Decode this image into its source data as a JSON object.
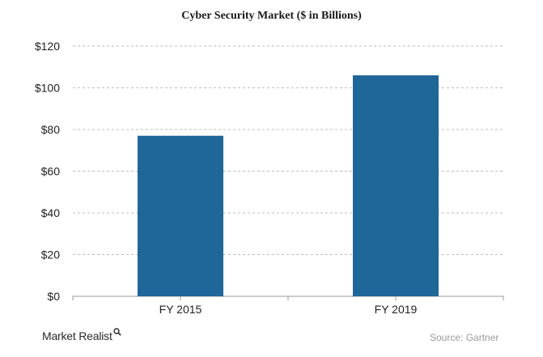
{
  "chart_data": {
    "type": "bar",
    "title": "Cyber Security Market ($ in Billions)",
    "categories": [
      "FY 2015",
      "FY 2019"
    ],
    "values": [
      77,
      106
    ],
    "ylim": [
      0,
      120
    ],
    "yticks": [
      0,
      20,
      40,
      60,
      80,
      100,
      120
    ],
    "ytick_labels": [
      "$0",
      "$20",
      "$40",
      "$60",
      "$80",
      "$100",
      "$120"
    ],
    "xlabel": "",
    "ylabel": "",
    "grid": "horizontal-dashed",
    "bar_color": "#1f6699",
    "grid_color": "#bdbdbd"
  },
  "footer": {
    "brand": "Market Realist",
    "brand_icon": "magnifier-icon",
    "source": "Source: Gartner"
  }
}
